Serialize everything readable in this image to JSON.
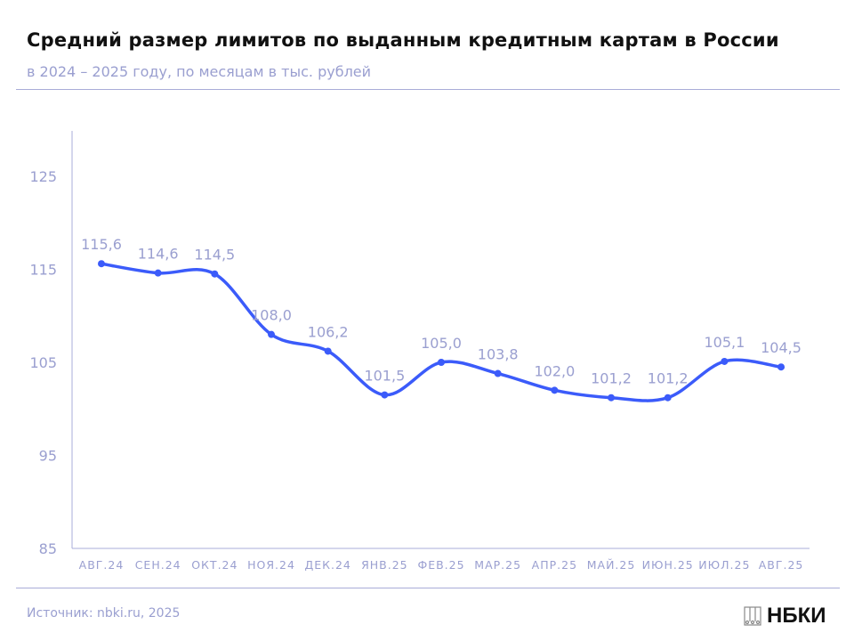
{
  "title": "Средний размер лимитов по выданным кредитным картам в России",
  "subtitle": "в 2024 – 2025 году, по месяцам в тыс. рублей",
  "source": "Источник: nbki.ru, 2025",
  "logo": "НБКИ",
  "chart_data": {
    "type": "line",
    "title": "Средний размер лимитов по выданным кредитным картам в России",
    "subtitle": "в 2024 – 2025 году, по месяцам в тыс. рублей",
    "categories": [
      "АВГ.24",
      "СЕН.24",
      "ОКТ.24",
      "НОЯ.24",
      "ДЕК.24",
      "ЯНВ.25",
      "ФЕВ.25",
      "МАР.25",
      "АПР.25",
      "МАЙ.25",
      "ИЮН.25",
      "ИЮЛ.25",
      "АВГ.25"
    ],
    "values": [
      115.6,
      114.6,
      114.5,
      108.0,
      106.2,
      101.5,
      105.0,
      103.8,
      102.0,
      101.2,
      101.2,
      105.1,
      104.5
    ],
    "labels": [
      "115,6",
      "114,6",
      "114,5",
      "108,0",
      "106,2",
      "101,5",
      "105,0",
      "103,8",
      "102,0",
      "101,2",
      "101,2",
      "105,1",
      "104,5"
    ],
    "yticks": [
      85,
      95,
      105,
      115,
      125
    ],
    "ylim": [
      85,
      130
    ],
    "grid": false,
    "line_color": "#3b5bfa",
    "label_color": "#9a9fd0"
  }
}
